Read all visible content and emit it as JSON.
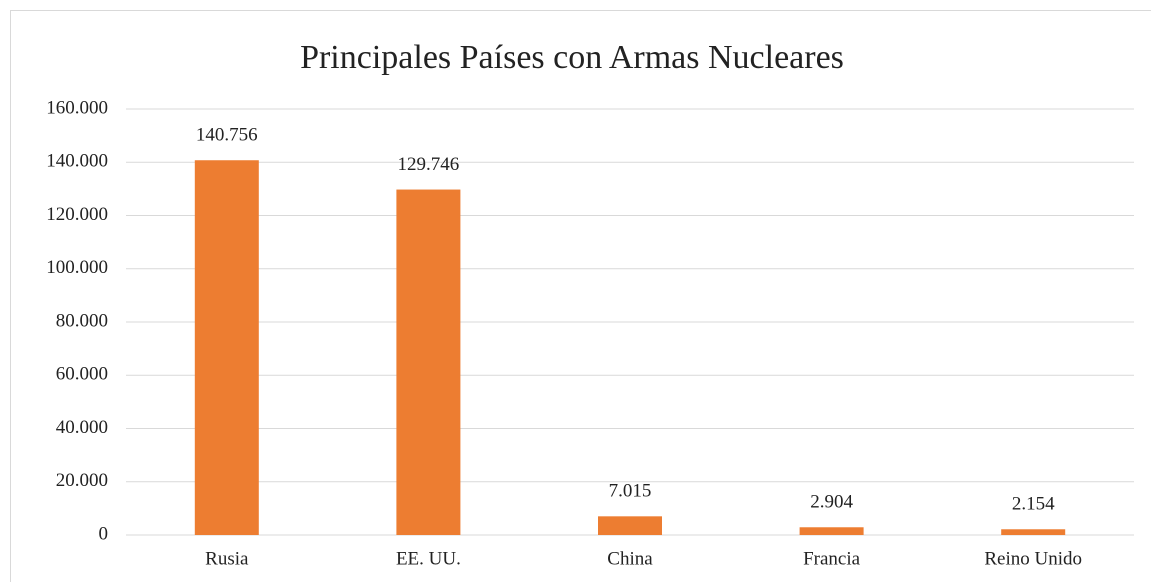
{
  "chart_data": {
    "type": "bar",
    "title": "Principales Países con Armas Nucleares",
    "categories": [
      "Rusia",
      "EE. UU.",
      "China",
      "Francia",
      "Reino Unido"
    ],
    "values": [
      140756,
      129746,
      7015,
      2904,
      2154
    ],
    "value_labels": [
      "140.756",
      "129.746",
      "7.015",
      "2.904",
      "2.154"
    ],
    "color": "#ed7d31",
    "ylim": [
      0,
      160000
    ],
    "yticks": [
      0,
      {
        "value": 20000,
        "label": "20.000"
      },
      {
        "value": 40000,
        "label": "40.000"
      },
      {
        "value": 60000,
        "label": "60.000"
      },
      {
        "value": 80000,
        "label": "80.000"
      },
      {
        "value": 100000,
        "label": "100.000"
      },
      {
        "value": 120000,
        "label": "120.000"
      },
      {
        "value": 140000,
        "label": "140.000"
      },
      {
        "value": 160000,
        "label": "160.000"
      }
    ],
    "grid": true
  }
}
